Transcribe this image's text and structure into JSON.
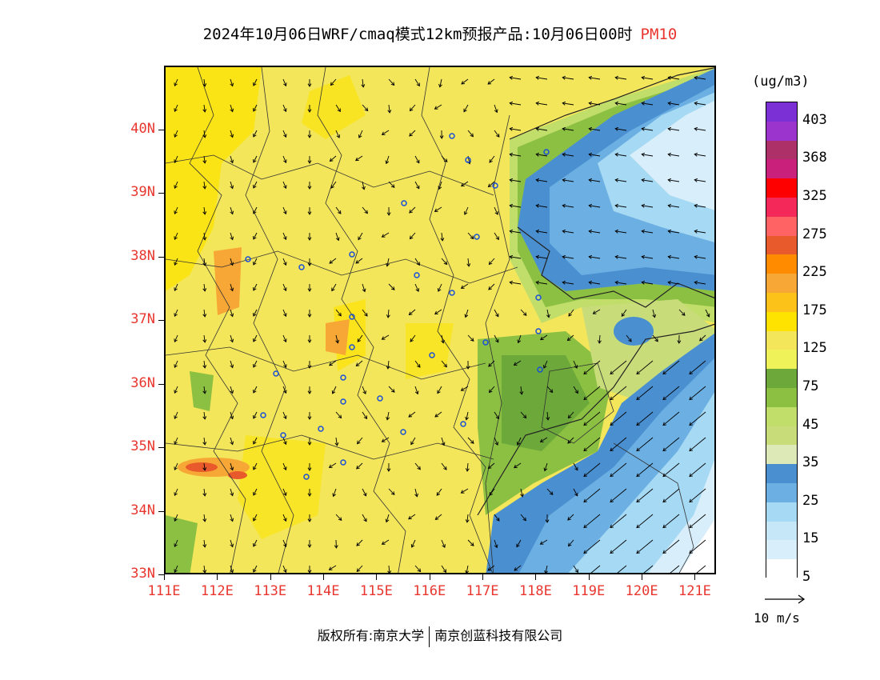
{
  "title": {
    "main": "2024年10月06日WRF/cmaq模式12km预报产品:10月06日00时",
    "variable": "PM10"
  },
  "map": {
    "lat_labels": [
      "40N",
      "39N",
      "38N",
      "37N",
      "36N",
      "35N",
      "34N",
      "33N"
    ],
    "lon_labels": [
      "111E",
      "112E",
      "113E",
      "114E",
      "115E",
      "116E",
      "117E",
      "118E",
      "119E",
      "120E",
      "121E"
    ],
    "lat_range": [
      33,
      41
    ],
    "lon_range": [
      111,
      121.4
    ],
    "colors": {
      "land_base": "#f3e65a",
      "high_yellow": "#fee300",
      "orange": "#f7a735",
      "red_orange": "#e85a2b",
      "green_dark": "#6ca93a",
      "green_mid": "#8cc043",
      "green_light": "#c1dd6a",
      "green_pale": "#dde9b6",
      "blue_dark": "#4a8fd0",
      "blue_mid": "#6cb0e3",
      "blue_light": "#a6d9f3",
      "blue_pale": "#d8eefa",
      "boundary": "#333333",
      "station": "#1a4fd8"
    }
  },
  "colorbar": {
    "unit": "(ug/m3)",
    "labels": [
      "403",
      "368",
      "325",
      "275",
      "225",
      "175",
      "125",
      "75",
      "45",
      "35",
      "25",
      "15",
      "5"
    ],
    "colors": [
      "#7a30d4",
      "#9b33cd",
      "#ad3168",
      "#c9207c",
      "#ff0000",
      "#f5285a",
      "#ff6364",
      "#e85a2b",
      "#ff8c00",
      "#f7a735",
      "#fcc21a",
      "#fee300",
      "#f3e65a",
      "#f0f25a",
      "#6ca93a",
      "#8cc043",
      "#c1dd6a",
      "#c8dd7a",
      "#dde9b6",
      "#4a8fd0",
      "#6cb0e3",
      "#a6d9f3",
      "#c5e7f7",
      "#d8eefa",
      "#ffffff"
    ]
  },
  "vector_reference": {
    "label": "10 m/s"
  },
  "footer": {
    "copyright": "版权所有:南京大学",
    "company": "南京创蓝科技有限公司"
  }
}
